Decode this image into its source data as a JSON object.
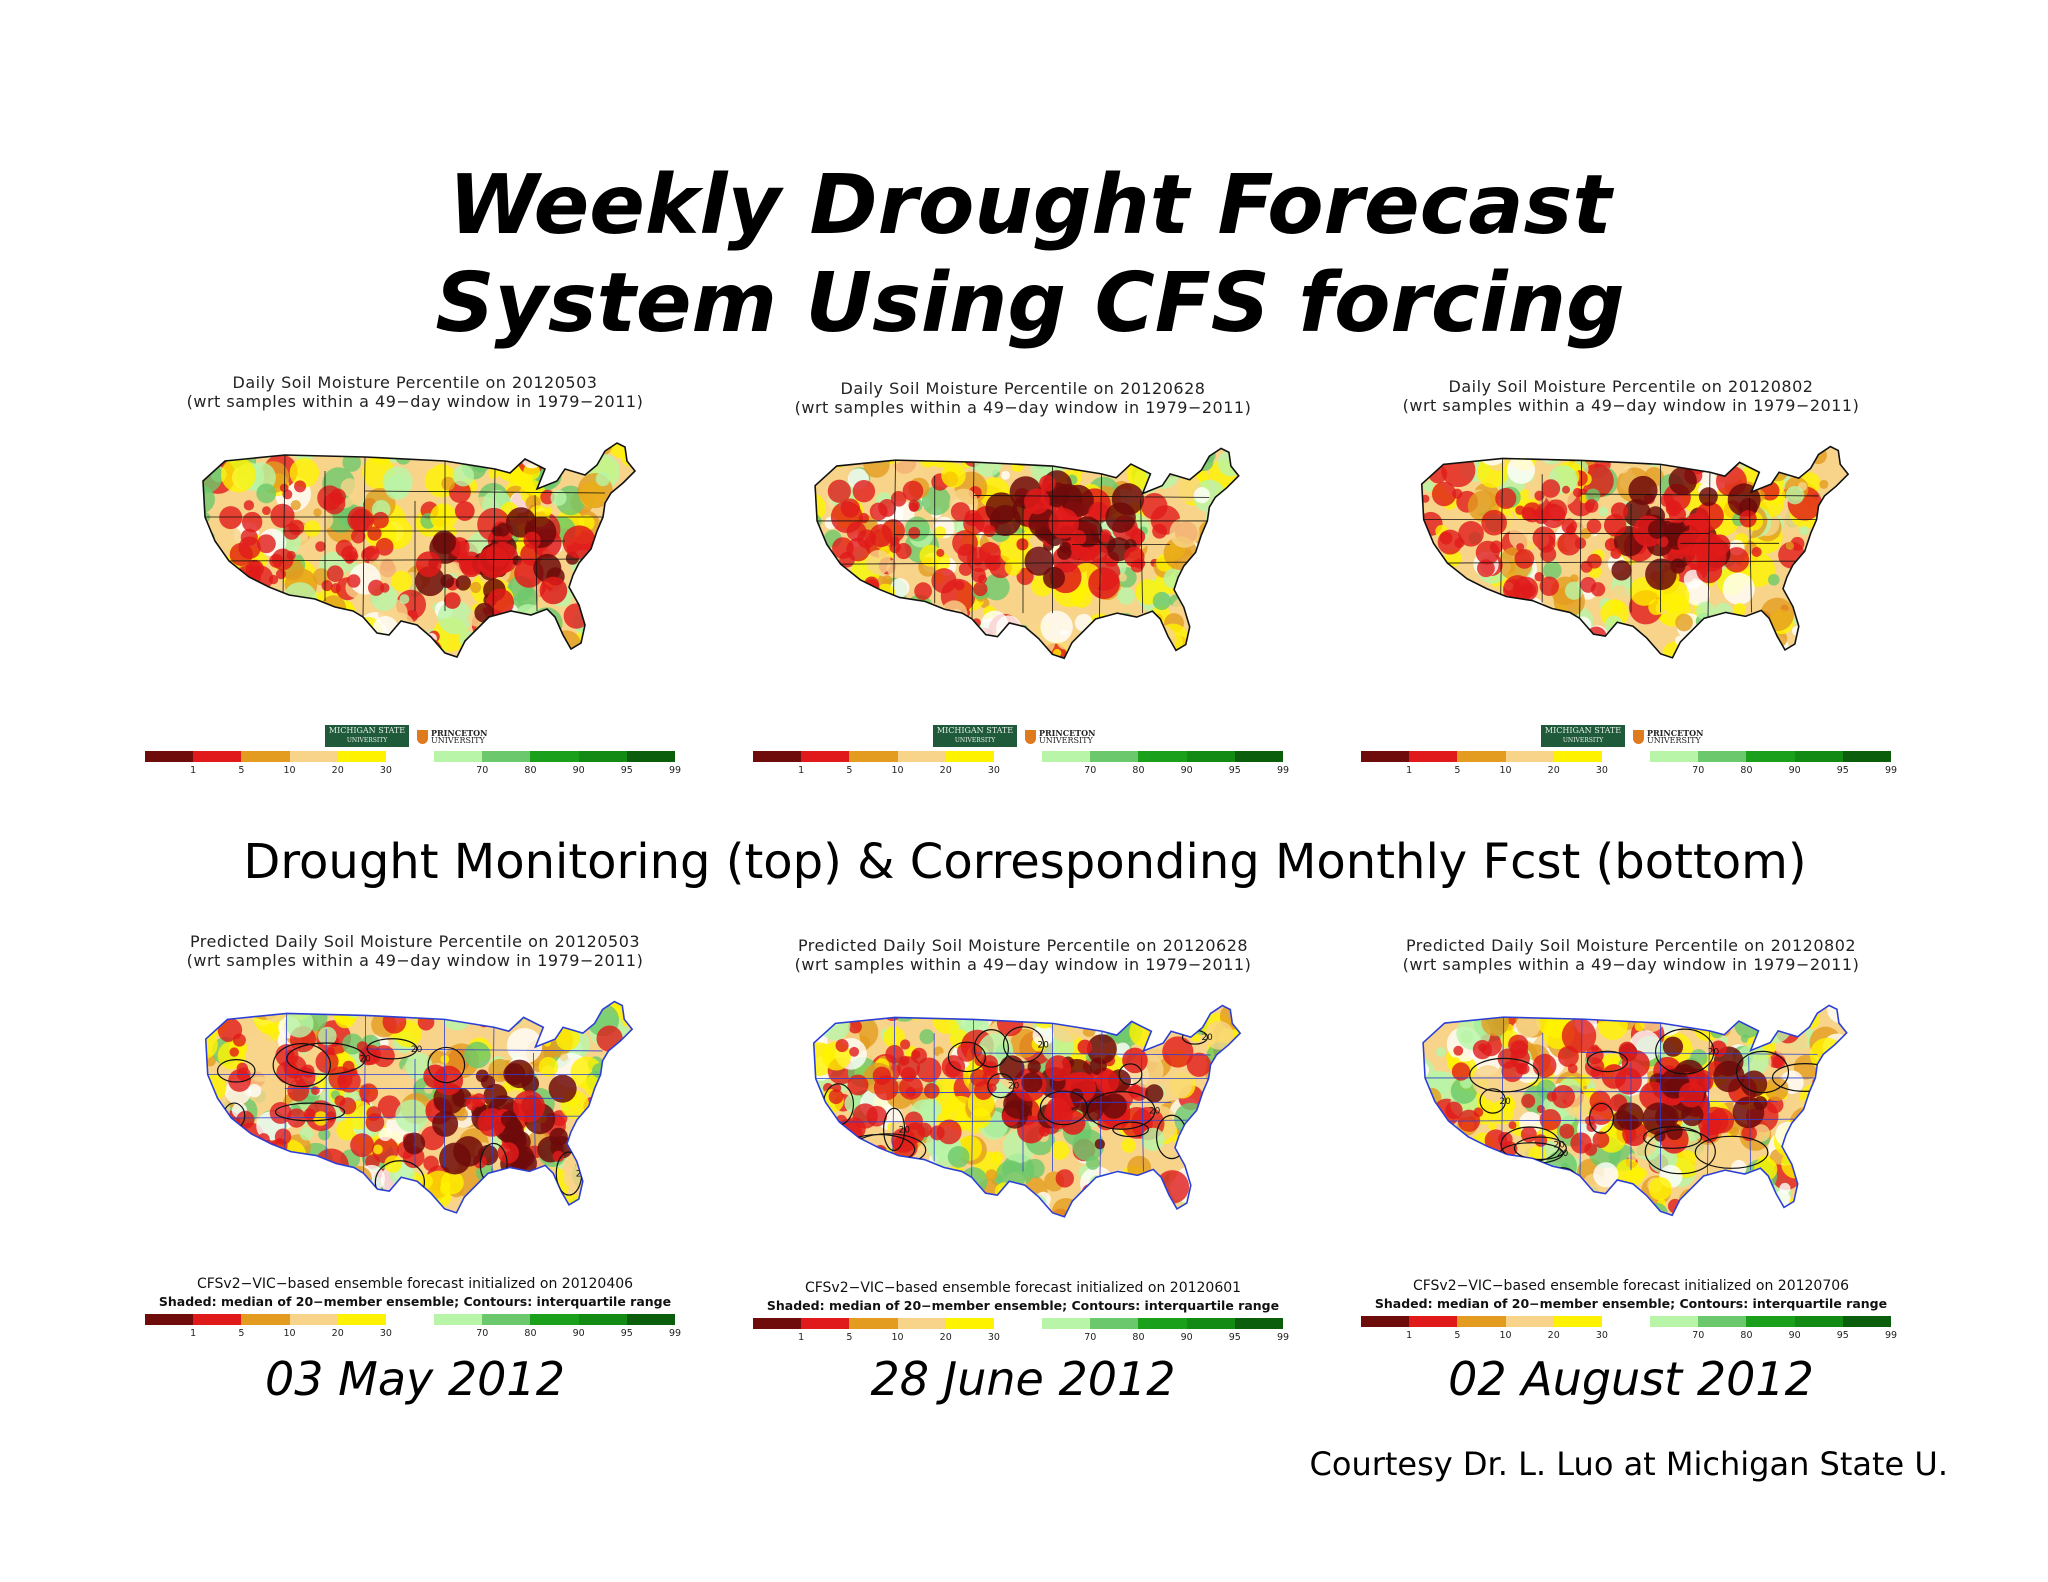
{
  "slide": {
    "title_line1": "Weekly Drought  Forecast",
    "title_line2": "System Using CFS forcing",
    "subtitle": "Drought Monitoring (top) & Corresponding Monthly Fcst (bottom)",
    "credit": "Courtesy Dr. L. Luo at Michigan State U."
  },
  "logos": {
    "msu": "MICHIGAN STATE",
    "msu_sub": "UNIVERSITY",
    "princeton": "PRINCETON",
    "princeton_sub": "UNIVERSITY"
  },
  "colorbar": {
    "colors": [
      "#6e0b0b",
      "#e01a1a",
      "#e39c1f",
      "#f8d48a",
      "#fff200",
      "#ffffff",
      "#b8f5a8",
      "#6cc86c",
      "#1aa01a",
      "#138a13",
      "#0b5e0b"
    ],
    "ticks": [
      "1",
      "5",
      "10",
      "20",
      "30",
      "70",
      "80",
      "90",
      "95",
      "99"
    ]
  },
  "top_maps": [
    {
      "title1": "Daily Soil Moisture Percentile on 20120503",
      "title2": "(wrt samples within a 49−day window in 1979−2011)",
      "severity": 0.55,
      "hotspot": "southeast"
    },
    {
      "title1": "Daily Soil Moisture Percentile on 20120628",
      "title2": "(wrt samples within a 49−day window in 1979−2011)",
      "severity": 0.7,
      "hotspot": "midwest"
    },
    {
      "title1": "Daily Soil Moisture Percentile on 20120802",
      "title2": "(wrt samples within a 49−day window in 1979−2011)",
      "severity": 0.65,
      "hotspot": "midwest"
    }
  ],
  "bottom_maps": [
    {
      "title1": "Predicted Daily Soil Moisture Percentile on 20120503",
      "title2": "(wrt samples within a 49−day window in 1979−2011)",
      "note1": "CFSv2−VIC−based ensemble forecast initialized on 20120406",
      "note2": "Shaded: median of 20−member ensemble; Contours: interquartile range",
      "severity": 0.55,
      "hotspot": "southeast"
    },
    {
      "title1": "Predicted Daily Soil Moisture Percentile on 20120628",
      "title2": "(wrt samples within a 49−day window in 1979−2011)",
      "note1": "CFSv2−VIC−based ensemble forecast initialized on 20120601",
      "note2": "Shaded: median of 20−member ensemble; Contours: interquartile range",
      "severity": 0.6,
      "hotspot": "midwest"
    },
    {
      "title1": "Predicted Daily Soil Moisture Percentile on 20120802",
      "title2": "(wrt samples within a 49−day window in 1979−2011)",
      "note1": "CFSv2−VIC−based ensemble forecast initialized on 20120706",
      "note2": "Shaded: median of 20−member ensemble; Contours: interquartile range",
      "severity": 0.65,
      "hotspot": "midwest"
    }
  ],
  "dates": [
    "03 May 2012",
    "28 June 2012",
    "02 August 2012"
  ],
  "contour_label": "20"
}
